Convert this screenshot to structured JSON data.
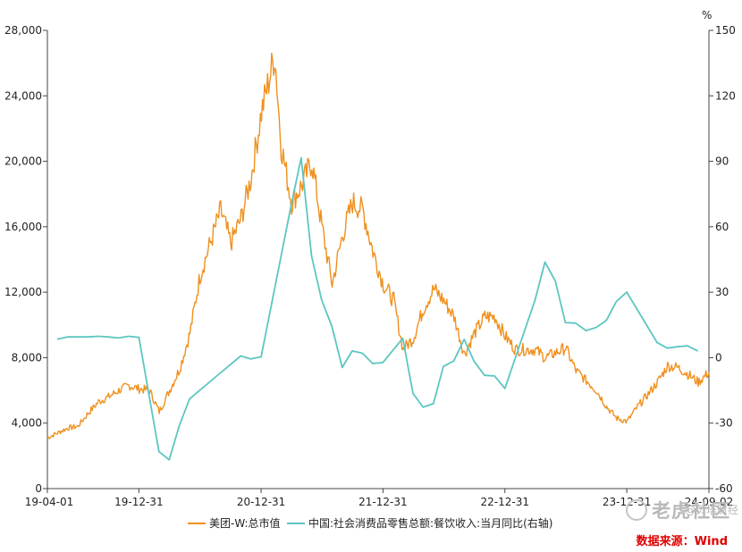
{
  "chart_data": {
    "type": "line",
    "unit_right": "%",
    "x_ticks": [
      "19-04-01",
      "19-12-31",
      "20-12-31",
      "21-12-31",
      "22-12-31",
      "23-12-31",
      "24-09-02"
    ],
    "y_left": {
      "ticks": [
        "0",
        "4,000",
        "8,000",
        "12,000",
        "16,000",
        "20,000",
        "24,000",
        "28,000"
      ],
      "ylim": [
        0,
        28000
      ]
    },
    "y_right": {
      "ticks": [
        "-60",
        "-30",
        "0",
        "30",
        "60",
        "90",
        "120",
        "150"
      ],
      "ylim": [
        -60,
        150
      ]
    },
    "grid": false,
    "legend_position": "bottom",
    "series": [
      {
        "name": "美团-W:总市值",
        "axis": "left",
        "color": "#f0901e",
        "points": [
          [
            "2019-04-01",
            3100
          ],
          [
            "2019-05-01",
            3400
          ],
          [
            "2019-06-01",
            3700
          ],
          [
            "2019-07-01",
            3800
          ],
          [
            "2019-08-01",
            4600
          ],
          [
            "2019-09-01",
            5300
          ],
          [
            "2019-10-01",
            5600
          ],
          [
            "2019-11-01",
            6000
          ],
          [
            "2019-12-01",
            6300
          ],
          [
            "2020-01-01",
            6100
          ],
          [
            "2020-02-01",
            6000
          ],
          [
            "2020-03-01",
            4700
          ],
          [
            "2020-04-01",
            6000
          ],
          [
            "2020-05-01",
            7300
          ],
          [
            "2020-06-01",
            9500
          ],
          [
            "2020-07-01",
            13000
          ],
          [
            "2020-08-01",
            15000
          ],
          [
            "2020-09-01",
            17000
          ],
          [
            "2020-10-01",
            15000
          ],
          [
            "2020-11-01",
            16500
          ],
          [
            "2020-12-01",
            19000
          ],
          [
            "2021-01-01",
            23000
          ],
          [
            "2021-02-10",
            26500
          ],
          [
            "2021-03-01",
            21000
          ],
          [
            "2021-04-01",
            17500
          ],
          [
            "2021-05-01",
            18500
          ],
          [
            "2021-06-01",
            20000
          ],
          [
            "2021-07-01",
            16000
          ],
          [
            "2021-08-01",
            12500
          ],
          [
            "2021-09-01",
            15500
          ],
          [
            "2021-10-01",
            17500
          ],
          [
            "2021-11-01",
            17000
          ],
          [
            "2021-12-01",
            14500
          ],
          [
            "2022-01-01",
            12500
          ],
          [
            "2022-02-01",
            11500
          ],
          [
            "2022-03-01",
            8500
          ],
          [
            "2022-04-01",
            9200
          ],
          [
            "2022-05-01",
            11000
          ],
          [
            "2022-06-01",
            12200
          ],
          [
            "2022-07-01",
            11500
          ],
          [
            "2022-08-01",
            10500
          ],
          [
            "2022-09-01",
            8200
          ],
          [
            "2022-10-01",
            9500
          ],
          [
            "2022-11-01",
            10500
          ],
          [
            "2022-12-01",
            10500
          ],
          [
            "2023-01-01",
            9300
          ],
          [
            "2023-02-01",
            8500
          ],
          [
            "2023-03-01",
            8500
          ],
          [
            "2023-04-01",
            8500
          ],
          [
            "2023-05-01",
            8000
          ],
          [
            "2023-06-01",
            8300
          ],
          [
            "2023-07-01",
            8600
          ],
          [
            "2023-08-01",
            7200
          ],
          [
            "2023-09-01",
            6600
          ],
          [
            "2023-10-01",
            6000
          ],
          [
            "2023-11-01",
            5000
          ],
          [
            "2023-12-01",
            4300
          ],
          [
            "2024-01-01",
            4100
          ],
          [
            "2024-02-01",
            5000
          ],
          [
            "2024-03-01",
            5700
          ],
          [
            "2024-04-01",
            6500
          ],
          [
            "2024-05-01",
            7500
          ],
          [
            "2024-06-01",
            7400
          ],
          [
            "2024-07-01",
            7000
          ],
          [
            "2024-08-01",
            6500
          ],
          [
            "2024-09-02",
            7100
          ]
        ]
      },
      {
        "name": "中国:社会消费品零售总额:餐饮收入:当月同比(右轴)",
        "axis": "right",
        "color": "#5cc6c1",
        "points": [
          [
            "2019-04-30",
            8.5
          ],
          [
            "2019-05-31",
            9.5
          ],
          [
            "2019-06-30",
            9.5
          ],
          [
            "2019-07-31",
            9.5
          ],
          [
            "2019-08-31",
            9.8
          ],
          [
            "2019-09-30",
            9.5
          ],
          [
            "2019-10-31",
            9.0
          ],
          [
            "2019-11-30",
            9.8
          ],
          [
            "2019-12-31",
            9.3
          ],
          [
            "2020-02-29",
            -43.1
          ],
          [
            "2020-03-31",
            -46.8
          ],
          [
            "2020-04-30",
            -31.1
          ],
          [
            "2020-05-31",
            -18.9
          ],
          [
            "2020-08-31",
            -7.0
          ],
          [
            "2020-10-31",
            0.8
          ],
          [
            "2020-11-30",
            -0.6
          ],
          [
            "2020-12-31",
            0.4
          ],
          [
            "2021-03-31",
            69.9
          ],
          [
            "2021-04-30",
            91.6
          ],
          [
            "2021-05-31",
            46.6
          ],
          [
            "2021-06-30",
            26.6
          ],
          [
            "2021-07-31",
            14.3
          ],
          [
            "2021-08-31",
            -4.5
          ],
          [
            "2021-09-30",
            3.1
          ],
          [
            "2021-10-31",
            2.0
          ],
          [
            "2021-11-30",
            -2.7
          ],
          [
            "2021-12-31",
            -2.2
          ],
          [
            "2022-02-28",
            8.9
          ],
          [
            "2022-03-31",
            -16.4
          ],
          [
            "2022-04-30",
            -22.7
          ],
          [
            "2022-05-31",
            -21.1
          ],
          [
            "2022-06-30",
            -4.0
          ],
          [
            "2022-07-31",
            -1.5
          ],
          [
            "2022-08-31",
            8.4
          ],
          [
            "2022-09-30",
            -1.7
          ],
          [
            "2022-10-31",
            -8.1
          ],
          [
            "2022-11-30",
            -8.4
          ],
          [
            "2022-12-31",
            -14.1
          ],
          [
            "2023-03-31",
            26.3
          ],
          [
            "2023-04-30",
            43.8
          ],
          [
            "2023-05-31",
            35.1
          ],
          [
            "2023-06-30",
            16.1
          ],
          [
            "2023-07-31",
            15.8
          ],
          [
            "2023-08-31",
            12.4
          ],
          [
            "2023-09-30",
            13.8
          ],
          [
            "2023-10-31",
            17.1
          ],
          [
            "2023-11-30",
            25.8
          ],
          [
            "2023-12-31",
            30.0
          ],
          [
            "2024-03-31",
            6.9
          ],
          [
            "2024-04-30",
            4.4
          ],
          [
            "2024-05-31",
            5.0
          ],
          [
            "2024-06-30",
            5.4
          ],
          [
            "2024-07-31",
            3.0
          ]
        ]
      }
    ]
  },
  "footer": {
    "source": "数据来源：Wind",
    "watermark_main": "老虎社区",
    "watermark_sub": "@贝塔财经"
  }
}
